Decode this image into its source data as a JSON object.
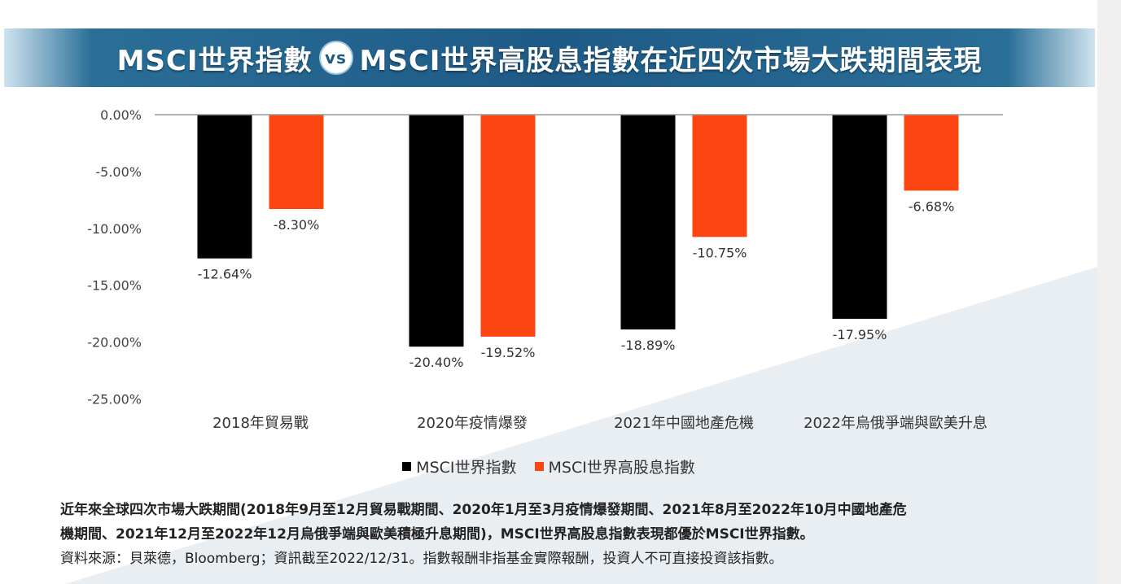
{
  "banner": {
    "title_left": "MSCI世界指數",
    "vs": "vs",
    "title_right": "MSCI世界高股息指數在近四次市場大跌期間表現"
  },
  "colors": {
    "series1": "#000000",
    "series2": "#fc4511",
    "banner": "#1e5a86",
    "bg_shape": "#e9eef3"
  },
  "chart_data": {
    "type": "bar",
    "title": "MSCI世界指數 vs MSCI世界高股息指數在近四次市場大跌期間表現",
    "categories": [
      "2018年貿易戰",
      "2020年疫情爆發",
      "2021年中國地產危機",
      "2022年烏俄爭端與歐美升息"
    ],
    "series": [
      {
        "name": "MSCI世界指數",
        "values": [
          -12.64,
          -20.4,
          -18.89,
          -17.95
        ],
        "labels": [
          "-12.64%",
          "-20.40%",
          "-18.89%",
          "-17.95%"
        ]
      },
      {
        "name": "MSCI世界高股息指數",
        "values": [
          -8.3,
          -19.52,
          -10.75,
          -6.68
        ],
        "labels": [
          "-8.30%",
          "-19.52%",
          "-10.75%",
          "-6.68%"
        ]
      }
    ],
    "yticks": [
      0,
      -5,
      -10,
      -15,
      -20,
      -25
    ],
    "ytick_labels": [
      "0.00%",
      "-5.00%",
      "-10.00%",
      "-15.00%",
      "-20.00%",
      "-25.00%"
    ],
    "ylim": [
      -25,
      0
    ],
    "grid": false,
    "legend_position": "bottom-center"
  },
  "legend": {
    "items": [
      "MSCI世界指數",
      "MSCI世界高股息指數"
    ]
  },
  "notes": {
    "line1": "近年來全球四次市場大跌期間(2018年9月至12月貿易戰期間、2020年1月至3月疫情爆發期間、2021年8月至2022年10月中國地產危",
    "line2": "機期間、2021年12月至2022年12月烏俄爭端與歐美積極升息期間)，MSCI世界高股息指數表現都優於MSCI世界指數。",
    "line3": "資料來源：貝萊德，Bloomberg；資訊截至2022/12/31。指數報酬非指基金實際報酬，投資人不可直接投資該指數。"
  }
}
